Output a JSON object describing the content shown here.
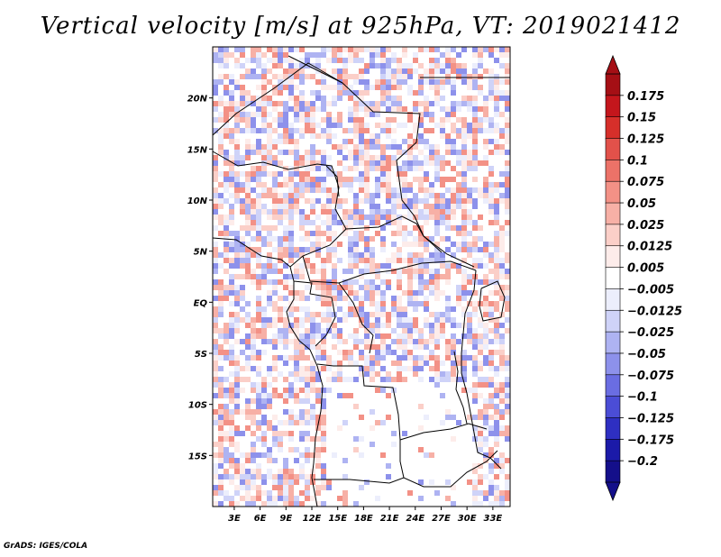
{
  "chart_data": {
    "type": "heatmap",
    "title": "Vertical velocity [m/s] at 925hPa, VT: 2019021412",
    "variable": "Vertical velocity",
    "units": "m/s",
    "level": "925hPa",
    "valid_time": "2019021412",
    "x_ticks": [
      "3E",
      "6E",
      "9E",
      "12E",
      "15E",
      "18E",
      "21E",
      "24E",
      "27E",
      "30E",
      "33E"
    ],
    "x_tick_values": [
      3,
      6,
      9,
      12,
      15,
      18,
      21,
      24,
      27,
      30,
      33
    ],
    "y_ticks": [
      "20N",
      "15N",
      "10N",
      "5N",
      "EQ",
      "5S",
      "10S",
      "15S"
    ],
    "y_tick_values": [
      20,
      15,
      10,
      5,
      0,
      -5,
      -10,
      -15
    ],
    "xlim": [
      0.5,
      35
    ],
    "ylim": [
      -20,
      25
    ],
    "colorbar": {
      "labels": [
        "0.175",
        "0.15",
        "0.125",
        "0.1",
        "0.075",
        "0.05",
        "0.025",
        "0.0125",
        "0.005",
        "−0.005",
        "−0.0125",
        "−0.025",
        "−0.05",
        "−0.075",
        "−0.1",
        "−0.125",
        "−0.175",
        "−0.2"
      ],
      "colors": [
        "#a50f15",
        "#c4161c",
        "#d62f2a",
        "#e2514a",
        "#ec7268",
        "#f39186",
        "#f7b0a6",
        "#fbcfc8",
        "#fdecea",
        "#ffffff",
        "#eceefc",
        "#cfd3f8",
        "#aeb3f2",
        "#8d91eb",
        "#6a6de2",
        "#4b4dd6",
        "#2e2fc2",
        "#1b1aa8",
        "#140f8a"
      ]
    }
  },
  "credit": "GrADS: IGES/COLA"
}
